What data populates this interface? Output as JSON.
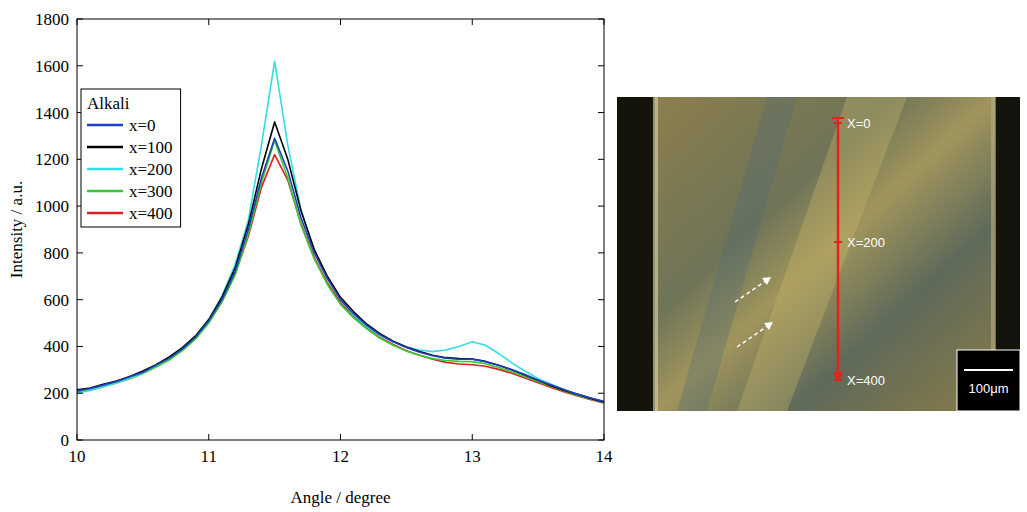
{
  "chart_data": {
    "type": "line",
    "x_label": "Angle / degree",
    "y_label": "Intensity / a.u.",
    "legend_title": "Alkali",
    "legend": "upper left",
    "grid": false,
    "xlim": [
      10,
      14
    ],
    "xticks": [
      10,
      11,
      12,
      13,
      14
    ],
    "ylim": [
      0,
      1800
    ],
    "yticks": [
      0,
      200,
      400,
      600,
      800,
      1000,
      1200,
      1400,
      1600,
      1800
    ],
    "x": [
      10.0,
      10.1,
      10.2,
      10.3,
      10.4,
      10.5,
      10.6,
      10.7,
      10.8,
      10.9,
      11.0,
      11.1,
      11.2,
      11.3,
      11.4,
      11.5,
      11.6,
      11.7,
      11.8,
      11.9,
      12.0,
      12.1,
      12.2,
      12.3,
      12.4,
      12.5,
      12.6,
      12.7,
      12.8,
      12.9,
      13.0,
      13.1,
      13.2,
      13.3,
      13.4,
      13.5,
      13.6,
      13.7,
      13.8,
      13.9,
      14.0
    ],
    "series": [
      {
        "name": "x=0",
        "color": "#1f3fbf",
        "values": [
          210,
          220,
          235,
          250,
          270,
          290,
          320,
          350,
          390,
          440,
          510,
          600,
          720,
          900,
          1120,
          1290,
          1150,
          950,
          800,
          690,
          600,
          540,
          490,
          450,
          420,
          395,
          375,
          360,
          350,
          345,
          345,
          335,
          320,
          300,
          280,
          255,
          235,
          215,
          195,
          180,
          165
        ]
      },
      {
        "name": "x=100",
        "color": "#000000",
        "values": [
          215,
          222,
          238,
          252,
          272,
          295,
          322,
          355,
          395,
          445,
          515,
          610,
          735,
          920,
          1160,
          1360,
          1200,
          980,
          815,
          700,
          610,
          548,
          495,
          455,
          422,
          398,
          378,
          362,
          352,
          348,
          346,
          336,
          320,
          300,
          278,
          255,
          232,
          212,
          195,
          178,
          162
        ]
      },
      {
        "name": "x=200",
        "color": "#33dde6",
        "values": [
          200,
          212,
          228,
          245,
          265,
          288,
          318,
          350,
          392,
          445,
          515,
          615,
          750,
          940,
          1260,
          1620,
          1260,
          985,
          810,
          690,
          600,
          535,
          485,
          448,
          420,
          398,
          385,
          378,
          385,
          400,
          420,
          405,
          370,
          330,
          295,
          262,
          238,
          215,
          195,
          178,
          160
        ]
      },
      {
        "name": "x=300",
        "color": "#33cc33",
        "values": [
          205,
          214,
          228,
          244,
          262,
          284,
          312,
          342,
          382,
          432,
          500,
          590,
          705,
          880,
          1100,
          1280,
          1120,
          920,
          775,
          665,
          580,
          522,
          475,
          435,
          405,
          380,
          362,
          348,
          340,
          336,
          335,
          326,
          310,
          292,
          272,
          250,
          230,
          210,
          190,
          175,
          160
        ]
      },
      {
        "name": "x=400",
        "color": "#e02020",
        "values": [
          205,
          215,
          230,
          246,
          266,
          288,
          316,
          346,
          385,
          435,
          505,
          592,
          710,
          870,
          1080,
          1220,
          1110,
          925,
          780,
          672,
          588,
          528,
          478,
          438,
          408,
          382,
          362,
          345,
          332,
          325,
          322,
          315,
          302,
          285,
          265,
          245,
          225,
          205,
          188,
          172,
          158
        ]
      }
    ]
  },
  "micrograph": {
    "labels": [
      "X=0",
      "X=200",
      "X=400"
    ],
    "scale_bar": "100μm"
  }
}
